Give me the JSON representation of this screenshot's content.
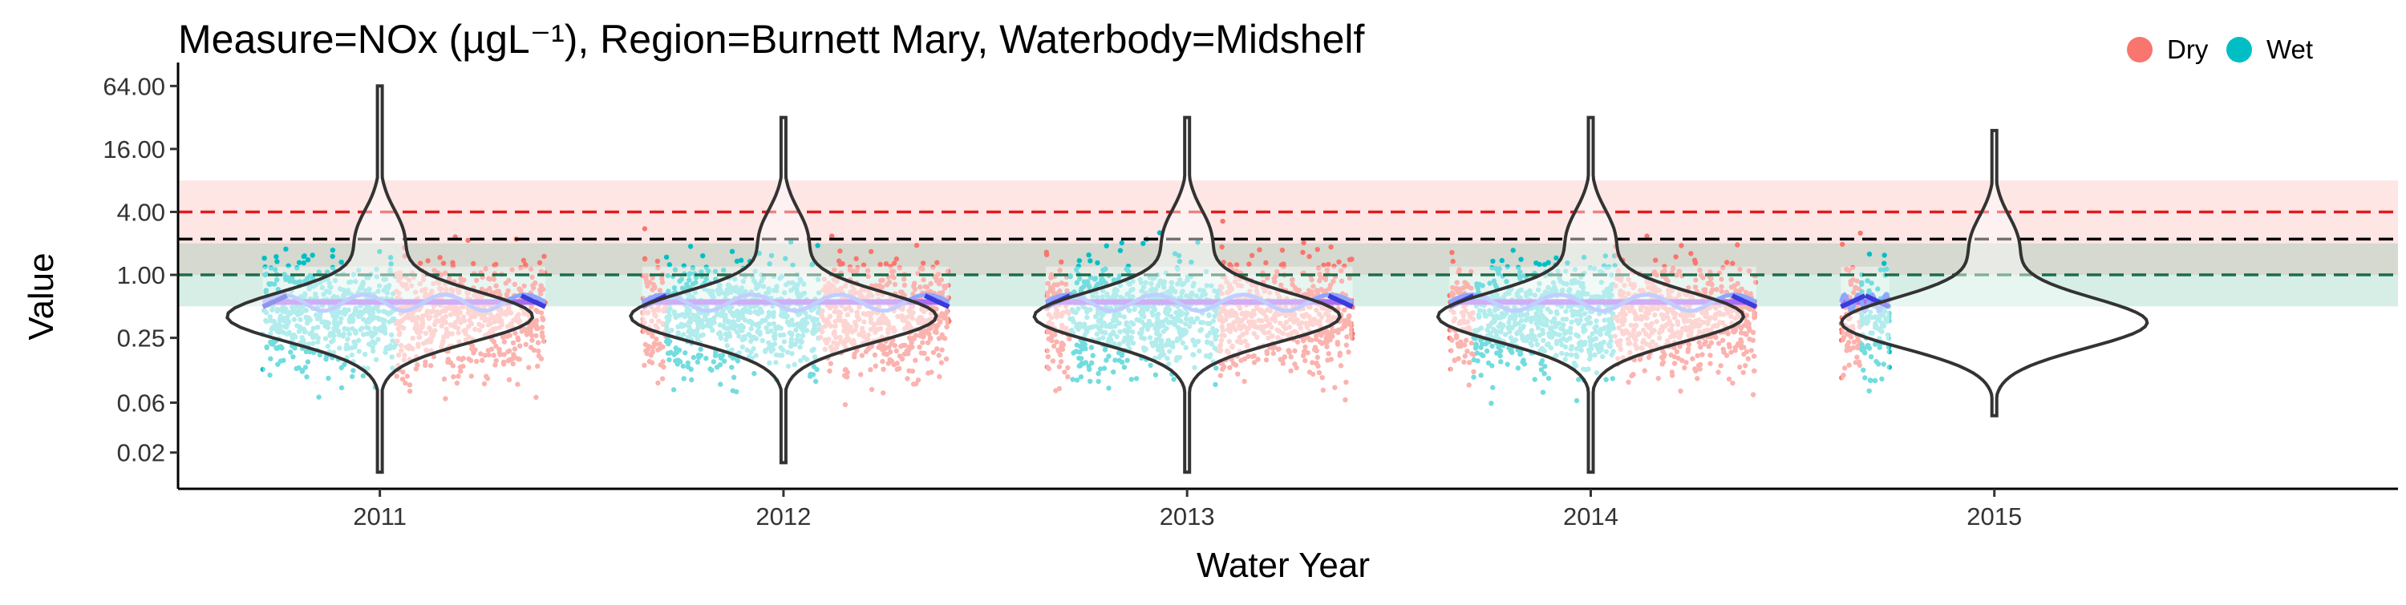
{
  "chart_data": {
    "type": "scatter",
    "title": "Measure=NOx (µgL⁻¹), Region=Burnett Mary, Waterbody=Midshelf",
    "xlabel": "Water Year",
    "ylabel": "Value",
    "y_scale": "log2",
    "ylim": [
      0.009,
      90
    ],
    "y_ticks": [
      64,
      16,
      4,
      1,
      0.25,
      0.06,
      0.02
    ],
    "y_tick_labels": [
      "64.00",
      "16.00",
      "4.00",
      "1.00",
      "0.25",
      "0.06",
      "0.02"
    ],
    "x_ticks": [
      "2011",
      "2012",
      "2013",
      "2014",
      "2015"
    ],
    "xlim": [
      2010.5,
      2016.0
    ],
    "grid": false,
    "legend": {
      "placement": "top-right",
      "items": [
        {
          "label": "Dry",
          "color": "#F8766D"
        },
        {
          "label": "Wet",
          "color": "#00BFC4"
        }
      ]
    },
    "reference_lines": [
      {
        "value": 4.0,
        "color": "#e31a1c"
      },
      {
        "value": 2.2,
        "color": "#000000"
      },
      {
        "value": 1.0,
        "color": "#1b6e4a"
      }
    ],
    "reference_bands": [
      {
        "range": [
          1.0,
          8.0
        ],
        "color": "#F8766D"
      },
      {
        "range": [
          0.5,
          2.0
        ],
        "color": "#1b9e77"
      }
    ],
    "season_windows": [
      {
        "year": "2011",
        "series": "Wet",
        "from": 2010.71,
        "to": 2011.04
      },
      {
        "year": "2011",
        "series": "Dry",
        "from": 2011.04,
        "to": 2011.41
      },
      {
        "year": "2012",
        "series": "Dry",
        "from": 2011.65,
        "to": 2011.71
      },
      {
        "year": "2012",
        "series": "Wet",
        "from": 2011.71,
        "to": 2012.09
      },
      {
        "year": "2012",
        "series": "Dry",
        "from": 2012.09,
        "to": 2012.41
      },
      {
        "year": "2013",
        "series": "Dry",
        "from": 2012.65,
        "to": 2012.71
      },
      {
        "year": "2013",
        "series": "Wet",
        "from": 2012.71,
        "to": 2013.08
      },
      {
        "year": "2013",
        "series": "Dry",
        "from": 2013.08,
        "to": 2013.41
      },
      {
        "year": "2014",
        "series": "Dry",
        "from": 2013.65,
        "to": 2013.71
      },
      {
        "year": "2014",
        "series": "Wet",
        "from": 2013.71,
        "to": 2014.06
      },
      {
        "year": "2014",
        "series": "Dry",
        "from": 2014.06,
        "to": 2014.41
      },
      {
        "year": "2015",
        "series": "Dry",
        "from": 2014.62,
        "to": 2014.67
      },
      {
        "year": "2015",
        "series": "Wet",
        "from": 2014.67,
        "to": 2014.74
      }
    ],
    "violins": [
      {
        "year": "2011",
        "center": 2011,
        "min": 0.013,
        "max": 64,
        "mode": 0.4
      },
      {
        "year": "2012",
        "center": 2012,
        "min": 0.016,
        "max": 32,
        "mode": 0.4
      },
      {
        "year": "2013",
        "center": 2013,
        "min": 0.013,
        "max": 32,
        "mode": 0.4
      },
      {
        "year": "2014",
        "center": 2014,
        "min": 0.013,
        "max": 32,
        "mode": 0.4
      },
      {
        "year": "2015",
        "center": 2015,
        "min": 0.045,
        "max": 24,
        "mode": 0.35
      }
    ],
    "trend_level": 0.55
  }
}
